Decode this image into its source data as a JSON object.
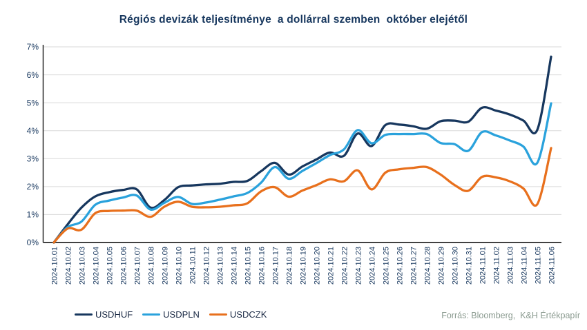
{
  "title": "Régiós devizák teljesítménye  a dollárral szemben  október elejétől",
  "source": "Forrás: Bloomberg,  K&H Értékpapír",
  "colors": {
    "title_text": "#17375e",
    "axis_text": "#17375e",
    "axis_line": "#262626",
    "gridline": "#d9d9d9",
    "source_text": "#8a9a8f",
    "usdhuf": "#17375e",
    "usdpln": "#2aa2dc",
    "usdczk": "#e8701d"
  },
  "chart_data": {
    "type": "line",
    "title": "Régiós devizák teljesítménye  a dollárral szemben  október elejétől",
    "xlabel": "",
    "ylabel": "",
    "ylim": [
      0,
      7
    ],
    "y_ticks": [
      "0%",
      "1%",
      "2%",
      "3%",
      "4%",
      "5%",
      "6%",
      "7%"
    ],
    "grid": true,
    "legend_position": "bottom",
    "x": [
      "2024.10.01",
      "2024.10.02",
      "2024.10.03",
      "2024.10.04",
      "2024.10.05",
      "2024.10.06",
      "2024.10.07",
      "2024.10.08",
      "2024.10.09",
      "2024.10.10",
      "2024.10.11",
      "2024.10.12",
      "2024.10.13",
      "2024.10.14",
      "2024.10.15",
      "2024.10.16",
      "2024.10.17",
      "2024.10.18",
      "2024.10.19",
      "2024.10.20",
      "2024.10.21",
      "2024.10.22",
      "2024.10.23",
      "2024.10.24",
      "2024.10.25",
      "2024.10.26",
      "2024.10.27",
      "2024.10.28",
      "2024.10.29",
      "2024.10.30",
      "2024.10.31",
      "2024.11.01",
      "2024.11.02",
      "2024.11.03",
      "2024.11.04",
      "2024.11.05",
      "2024.11.06"
    ],
    "series": [
      {
        "name": "USDHUF",
        "color": "#17375e",
        "values": [
          0,
          0.65,
          1.25,
          1.65,
          1.8,
          1.88,
          1.9,
          1.25,
          1.52,
          1.98,
          2.04,
          2.08,
          2.1,
          2.17,
          2.2,
          2.55,
          2.85,
          2.43,
          2.72,
          2.97,
          3.22,
          3.1,
          3.9,
          3.45,
          4.2,
          4.22,
          4.16,
          4.07,
          4.34,
          4.36,
          4.32,
          4.82,
          4.72,
          4.58,
          4.36,
          4.03,
          6.65
        ]
      },
      {
        "name": "USDPLN",
        "color": "#2aa2dc",
        "values": [
          0,
          0.55,
          0.75,
          1.35,
          1.5,
          1.61,
          1.68,
          1.18,
          1.42,
          1.63,
          1.38,
          1.43,
          1.53,
          1.65,
          1.77,
          2.14,
          2.7,
          2.28,
          2.56,
          2.84,
          3.13,
          3.33,
          4.02,
          3.55,
          3.85,
          3.88,
          3.88,
          3.88,
          3.56,
          3.52,
          3.28,
          3.95,
          3.83,
          3.65,
          3.43,
          2.85,
          4.98
        ]
      },
      {
        "name": "USDCZK",
        "color": "#e8701d",
        "values": [
          0,
          0.5,
          0.46,
          1.05,
          1.13,
          1.14,
          1.14,
          0.92,
          1.28,
          1.46,
          1.28,
          1.26,
          1.28,
          1.33,
          1.4,
          1.83,
          1.98,
          1.64,
          1.86,
          2.05,
          2.26,
          2.19,
          2.58,
          1.9,
          2.5,
          2.62,
          2.67,
          2.7,
          2.43,
          2.06,
          1.85,
          2.35,
          2.33,
          2.19,
          1.93,
          1.37,
          3.38
        ]
      }
    ]
  }
}
